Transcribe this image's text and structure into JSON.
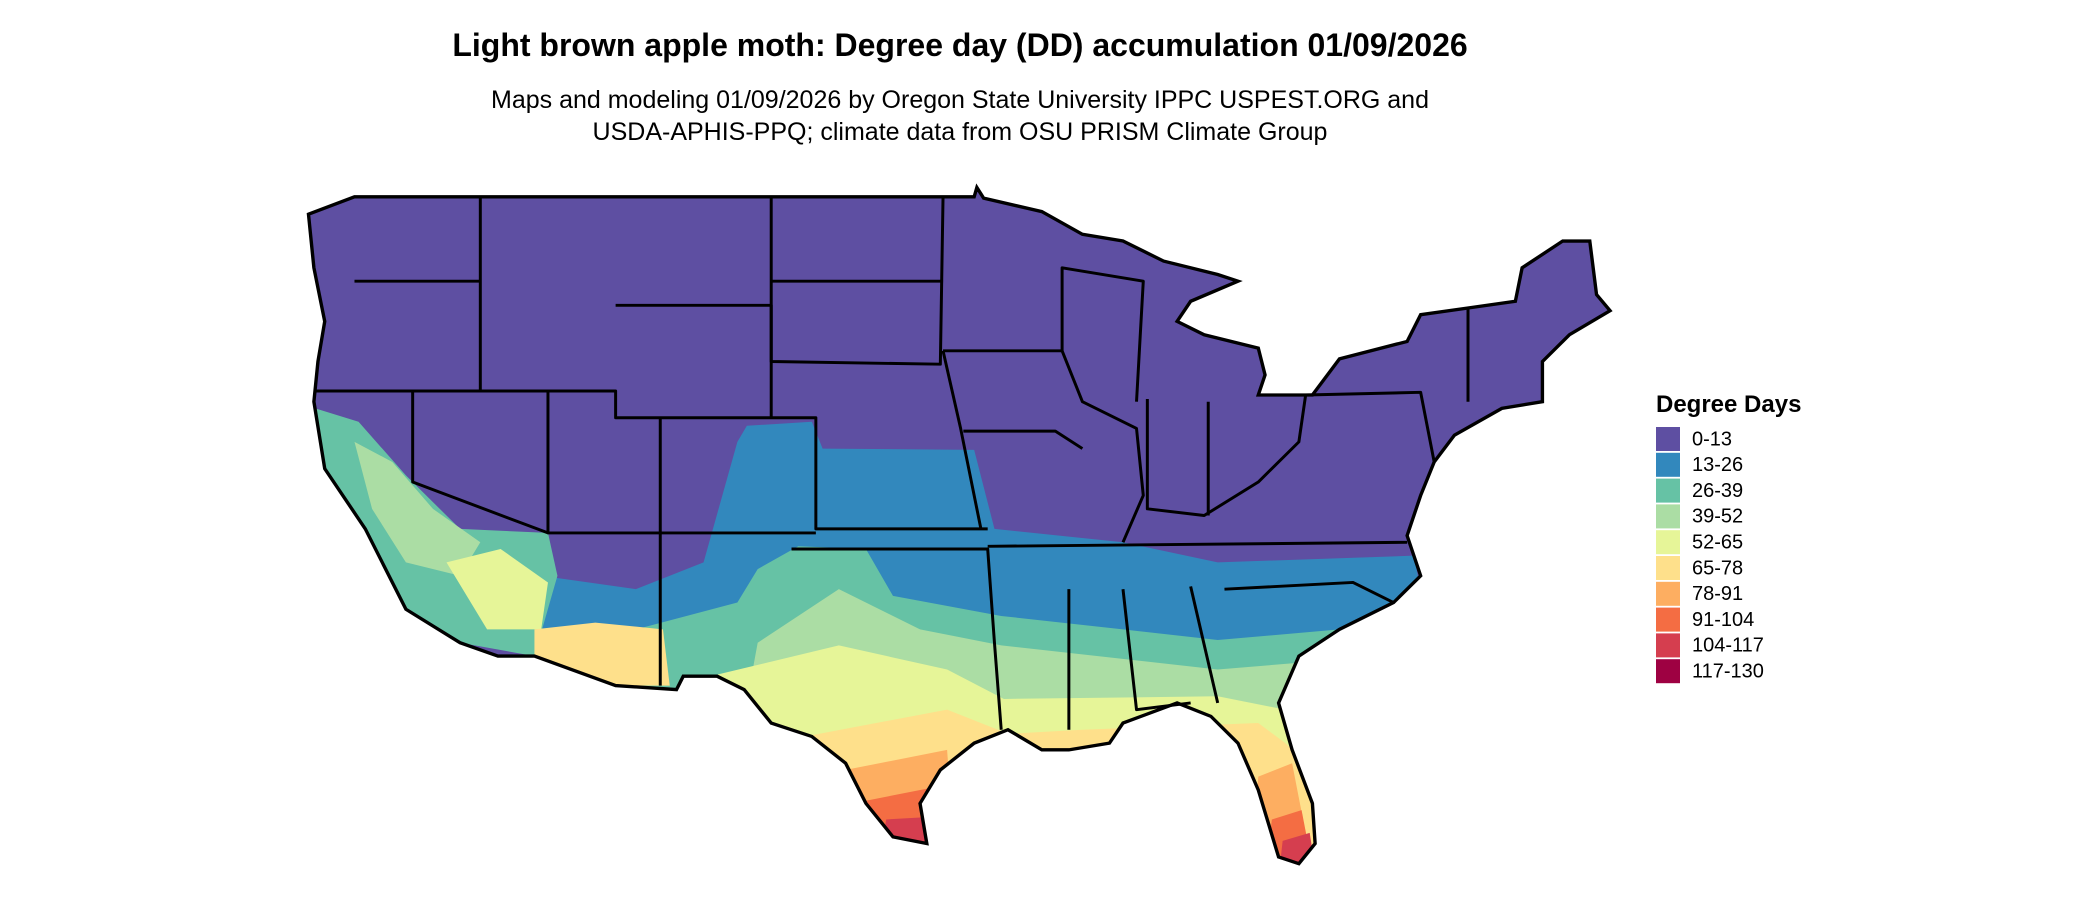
{
  "header": {
    "title": "Light brown apple moth: Degree day (DD) accumulation 01/09/2026",
    "subtitle_lines": [
      "Maps and modeling 01/09/2026 by Oregon State University IPPC USPEST.ORG and",
      "USDA-APHIS-PPQ; climate data from OSU PRISM Climate Group"
    ]
  },
  "legend": {
    "title": "Degree Days",
    "items": [
      {
        "label": "0-13",
        "color": "#5e4fa2"
      },
      {
        "label": "13-26",
        "color": "#3288bd"
      },
      {
        "label": "26-39",
        "color": "#66c2a5"
      },
      {
        "label": "39-52",
        "color": "#abdda4"
      },
      {
        "label": "52-65",
        "color": "#e6f598"
      },
      {
        "label": "65-78",
        "color": "#fee08b"
      },
      {
        "label": "78-91",
        "color": "#fdae61"
      },
      {
        "label": "91-104",
        "color": "#f46d43"
      },
      {
        "label": "104-117",
        "color": "#d53e4f"
      },
      {
        "label": "117-130",
        "color": "#9e0142"
      }
    ]
  }
}
